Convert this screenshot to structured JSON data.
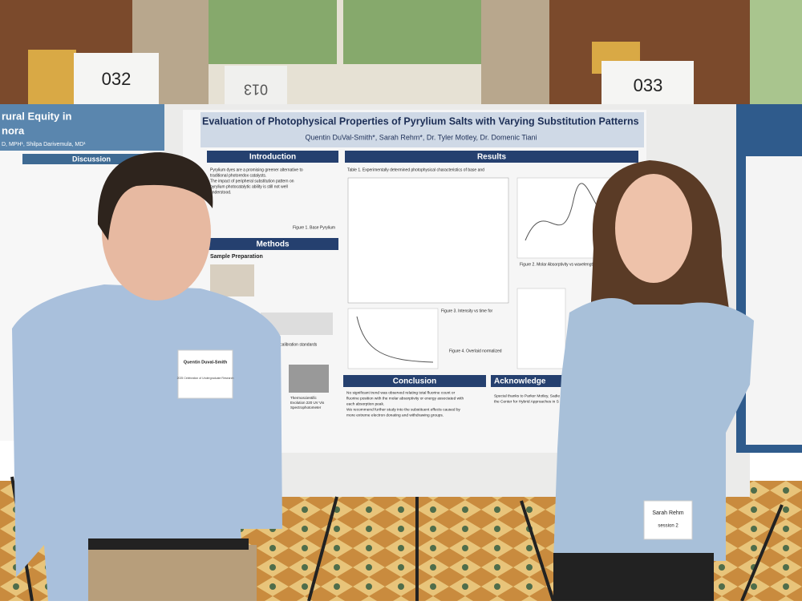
{
  "signs": [
    "032",
    "013",
    "033"
  ],
  "main_poster": {
    "title": "Evaluation of Photophysical Properties of Pyrylium Salts with Varying Substitution Patterns",
    "authors": "Quentin DuVal-Smith*, Sarah Rehm*, Dr. Tyler Motley, Dr. Domenic Tiani",
    "sections": {
      "introduction": "Introduction",
      "results": "Results",
      "methods": "Methods",
      "conclusion": "Conclusion",
      "acknowledgements": "Acknowledge"
    },
    "intro_text": [
      "Pyrylium dyes are a promising greener alternative to",
      "traditional photoredox catalysts.",
      "The impact of peripheral substitution pattern on",
      "pyrylium photocatalytic ability is still not well",
      "understood."
    ],
    "figure_1": "Figure 1. Base Pyrylium",
    "sample_preparation": "Sample Preparation",
    "dilute_label": "Dilute calibration standards",
    "instrument": [
      "Thermoscientific",
      "Evolution 220 UV Vis",
      "Spectrophotometer"
    ],
    "table_caption": "Table 1. Experimentally determined photophysical characteristics of base and",
    "figure_2": "Figure 2. Molar Absorptivity vs wavelength for",
    "figure_3": "Figure 3. Intensity vs time for",
    "figure_4": "Figure 4. Overlaid normalized",
    "conclusion_text": [
      "No significant trend was observed relating total fluorine count or",
      "fluorine position with the molar absorptivity or energy associated with",
      "each absorption peak.",
      "We recommend further study into the substituent effects caused by",
      "more extreme electron donating and withdrawing groups."
    ],
    "ack_text": [
      "Special thanks to Parker Motley, Sadie",
      "the Center for Hybrid Approaches in S"
    ]
  },
  "left_poster": {
    "title": "rural Equity in",
    "subtitle": "nora",
    "authors": "D, MPH¹, Shilpa Darivemula, MD¹",
    "section": "Discussion"
  },
  "name_tags": [
    {
      "name": "Quentin Duval-Smith",
      "event": "2025 Celebration of Undergraduate Research"
    },
    {
      "name": "Sarah Rehm",
      "event": "session 2"
    }
  ]
}
